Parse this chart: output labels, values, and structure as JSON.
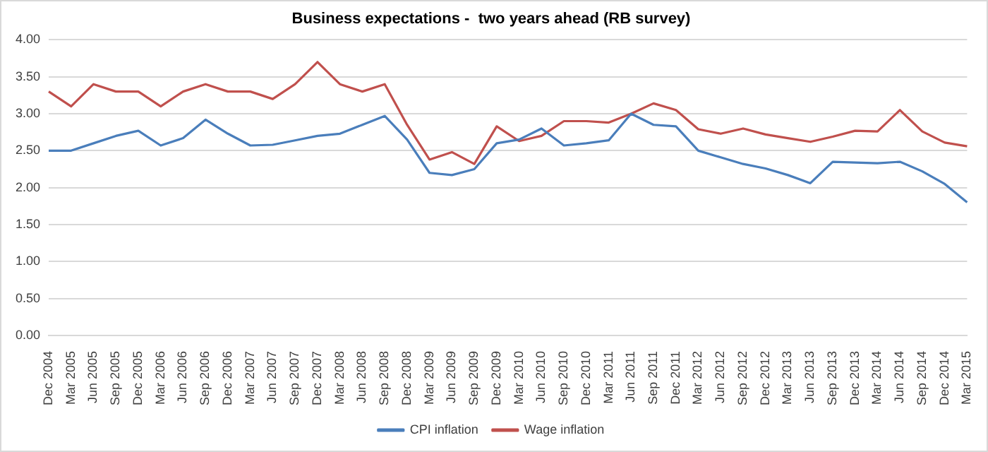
{
  "chart_data": {
    "type": "line",
    "title": "Business expectations -  two years ahead (RB survey)",
    "categories": [
      "Dec 2004",
      "Mar 2005",
      "Jun 2005",
      "Sep 2005",
      "Dec 2005",
      "Mar 2006",
      "Jun 2006",
      "Sep 2006",
      "Dec 2006",
      "Mar 2007",
      "Jun 2007",
      "Sep 2007",
      "Dec 2007",
      "Mar 2008",
      "Jun 2008",
      "Sep 2008",
      "Dec 2008",
      "Mar 2009",
      "Jun 2009",
      "Sep 2009",
      "Dec 2009",
      "Mar 2010",
      "Jun 2010",
      "Sep 2010",
      "Dec 2010",
      "Mar 2011",
      "Jun 2011",
      "Sep 2011",
      "Dec 2011",
      "Mar 2012",
      "Jun 2012",
      "Sep 2012",
      "Dec 2012",
      "Mar 2013",
      "Jun 2013",
      "Sep 2013",
      "Dec 2013",
      "Mar 2014",
      "Jun 2014",
      "Sep 2014",
      "Dec 2014",
      "Mar 2015"
    ],
    "series": [
      {
        "name": "CPI inflation",
        "color": "#4a7ebb",
        "values": [
          2.5,
          2.5,
          2.6,
          2.7,
          2.77,
          2.57,
          2.67,
          2.92,
          2.73,
          2.57,
          2.58,
          2.64,
          2.7,
          2.73,
          2.85,
          2.97,
          2.65,
          2.2,
          2.17,
          2.25,
          2.6,
          2.65,
          2.8,
          2.57,
          2.6,
          2.64,
          3.0,
          2.85,
          2.83,
          2.5,
          2.41,
          2.32,
          2.26,
          2.17,
          2.06,
          2.35,
          2.34,
          2.33,
          2.35,
          2.22,
          2.05,
          1.8
        ]
      },
      {
        "name": "Wage inflation",
        "color": "#c0504d",
        "values": [
          3.3,
          3.1,
          3.4,
          3.3,
          3.3,
          3.1,
          3.3,
          3.4,
          3.3,
          3.3,
          3.2,
          3.4,
          3.7,
          3.4,
          3.3,
          3.4,
          2.85,
          2.38,
          2.48,
          2.32,
          2.83,
          2.63,
          2.7,
          2.9,
          2.9,
          2.88,
          3.0,
          3.14,
          3.05,
          2.79,
          2.73,
          2.8,
          2.72,
          2.67,
          2.62,
          2.69,
          2.77,
          2.76,
          3.05,
          2.76,
          2.61,
          2.56
        ]
      }
    ],
    "ylim": [
      0,
      4
    ],
    "yticks": [
      {
        "value": 0,
        "label": "0.00"
      },
      {
        "value": 0.5,
        "label": "0.50"
      },
      {
        "value": 1,
        "label": "1.00"
      },
      {
        "value": 1.5,
        "label": "1.50"
      },
      {
        "value": 2,
        "label": "2.00"
      },
      {
        "value": 2.5,
        "label": "2.50"
      },
      {
        "value": 3,
        "label": "3.00"
      },
      {
        "value": 3.5,
        "label": "3.50"
      },
      {
        "value": 4,
        "label": "4.00"
      }
    ],
    "grid": "y",
    "legend": "bottom",
    "marker": "none",
    "line_style": "solid"
  }
}
